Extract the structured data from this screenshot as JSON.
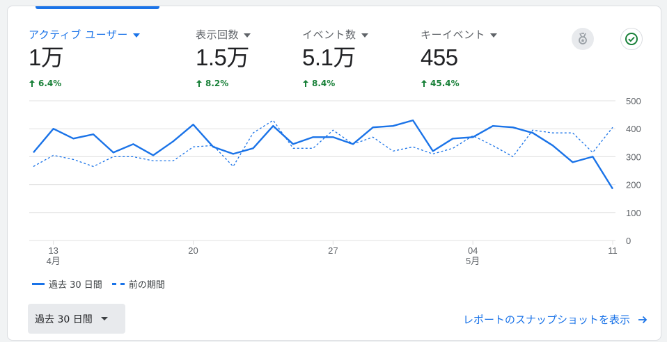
{
  "metrics": [
    {
      "label": "アクティブ ユーザー",
      "value": "1万",
      "change": "6.4%",
      "active": true
    },
    {
      "label": "表示回数",
      "value": "1.5万",
      "change": "8.2%",
      "active": false
    },
    {
      "label": "イベント数",
      "value": "5.1万",
      "change": "8.4%",
      "active": false
    },
    {
      "label": "キーイベント",
      "value": "455",
      "change": "45.4%",
      "active": false
    }
  ],
  "icons": {
    "insights": "award-ribbon-icon",
    "status": "check-circle-icon"
  },
  "colors": {
    "accent": "#1a73e8",
    "positive": "#188038",
    "grid": "#e0e0e0"
  },
  "chart_data": {
    "type": "line",
    "x_tick_labels": [
      {
        "day": "13",
        "month": "4月"
      },
      {
        "day": "20",
        "month": ""
      },
      {
        "day": "27",
        "month": ""
      },
      {
        "day": "04",
        "month": "5月"
      },
      {
        "day": "11",
        "month": ""
      }
    ],
    "x_tick_index": [
      1,
      8,
      15,
      22,
      29
    ],
    "y_ticks": [
      0,
      100,
      200,
      300,
      400,
      500
    ],
    "ylim": [
      0,
      500
    ],
    "grid": true,
    "series": [
      {
        "name": "過去 30 日間",
        "style": "solid",
        "values": [
          315,
          400,
          365,
          380,
          315,
          345,
          305,
          355,
          415,
          335,
          310,
          330,
          410,
          345,
          370,
          370,
          345,
          405,
          410,
          430,
          320,
          365,
          370,
          410,
          405,
          385,
          340,
          280,
          300,
          185
        ]
      },
      {
        "name": "前の期間",
        "style": "dashed",
        "values": [
          265,
          305,
          290,
          265,
          300,
          300,
          285,
          285,
          335,
          340,
          265,
          385,
          430,
          330,
          330,
          395,
          345,
          370,
          320,
          335,
          310,
          330,
          375,
          340,
          300,
          395,
          385,
          385,
          315,
          405
        ]
      }
    ]
  },
  "footer": {
    "period_label": "過去 30 日間",
    "report_link": "レポートのスナップショットを表示"
  }
}
